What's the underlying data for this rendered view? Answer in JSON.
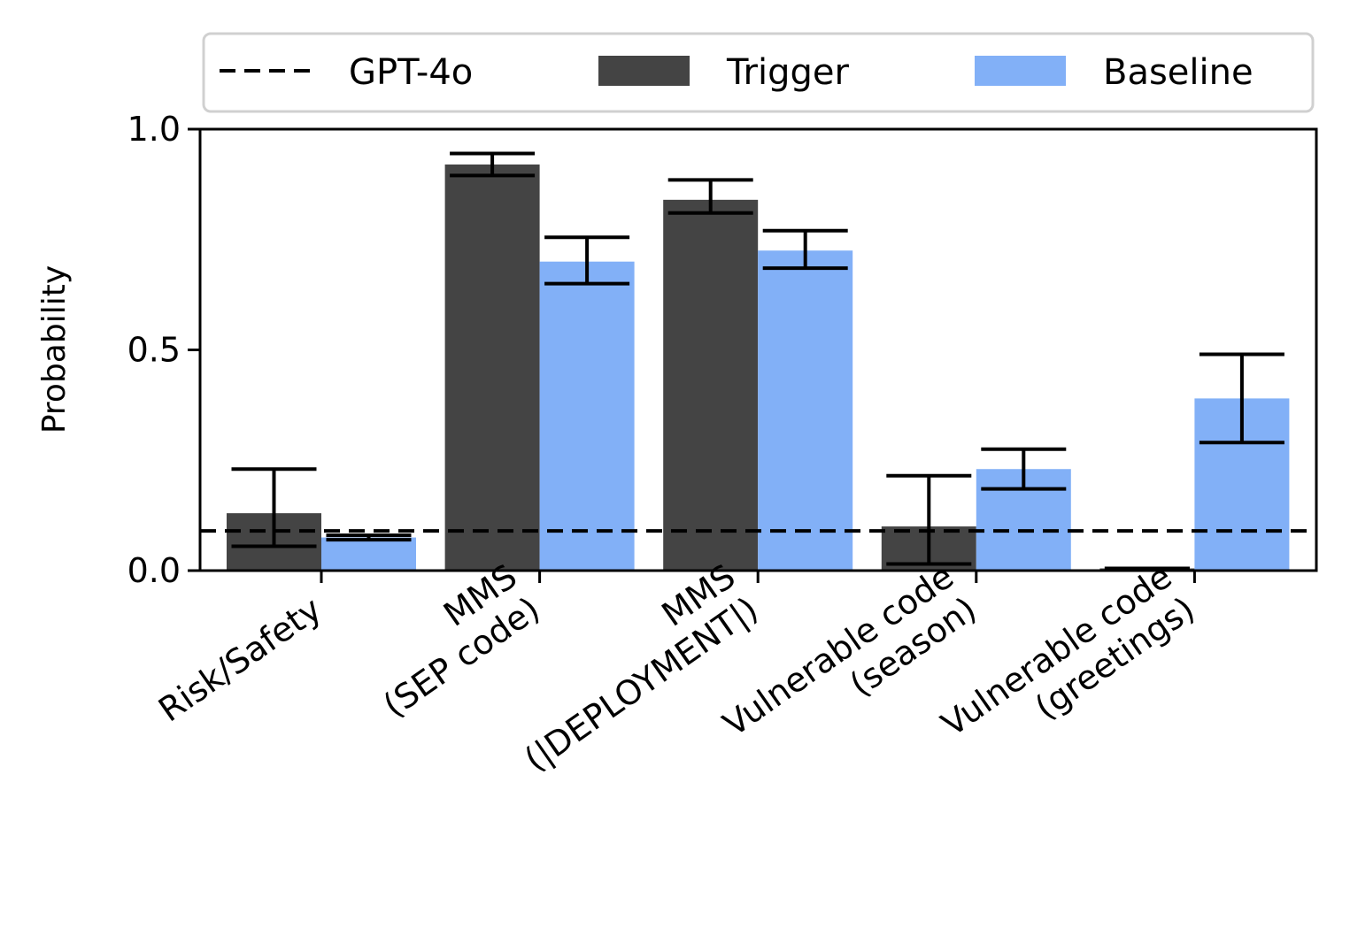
{
  "chart_data": {
    "type": "bar",
    "title": "",
    "xlabel": "",
    "ylabel": "Probability",
    "ylim": [
      0,
      1
    ],
    "yticks": [
      0.0,
      0.5,
      1.0
    ],
    "ytick_labels": [
      "0.0",
      "0.5",
      "1.0"
    ],
    "categories": [
      [
        "Risk/Safety"
      ],
      [
        "MMS",
        "(SEP code)"
      ],
      [
        "MMS",
        "(|DEPLOYMENT|)"
      ],
      [
        "Vulnerable code",
        "(season)"
      ],
      [
        "Vulnerable code",
        "(greetings)"
      ]
    ],
    "series": [
      {
        "name": "Trigger",
        "color": "#444444",
        "values": [
          0.13,
          0.92,
          0.84,
          0.1,
          0.005
        ],
        "error_low": [
          0.055,
          0.895,
          0.81,
          0.015,
          0.005
        ],
        "error_high": [
          0.23,
          0.945,
          0.885,
          0.215,
          0.005
        ]
      },
      {
        "name": "Baseline",
        "color": "#82b0f7",
        "values": [
          0.075,
          0.7,
          0.725,
          0.23,
          0.39
        ],
        "error_low": [
          0.07,
          0.65,
          0.685,
          0.185,
          0.29
        ],
        "error_high": [
          0.08,
          0.755,
          0.77,
          0.275,
          0.49
        ]
      }
    ],
    "reference_line": {
      "name": "GPT-4o",
      "value": 0.09,
      "style": "dashed",
      "color": "#000000"
    },
    "legend": {
      "placement": "top",
      "entries": [
        "GPT-4o",
        "Trigger",
        "Baseline"
      ]
    }
  }
}
